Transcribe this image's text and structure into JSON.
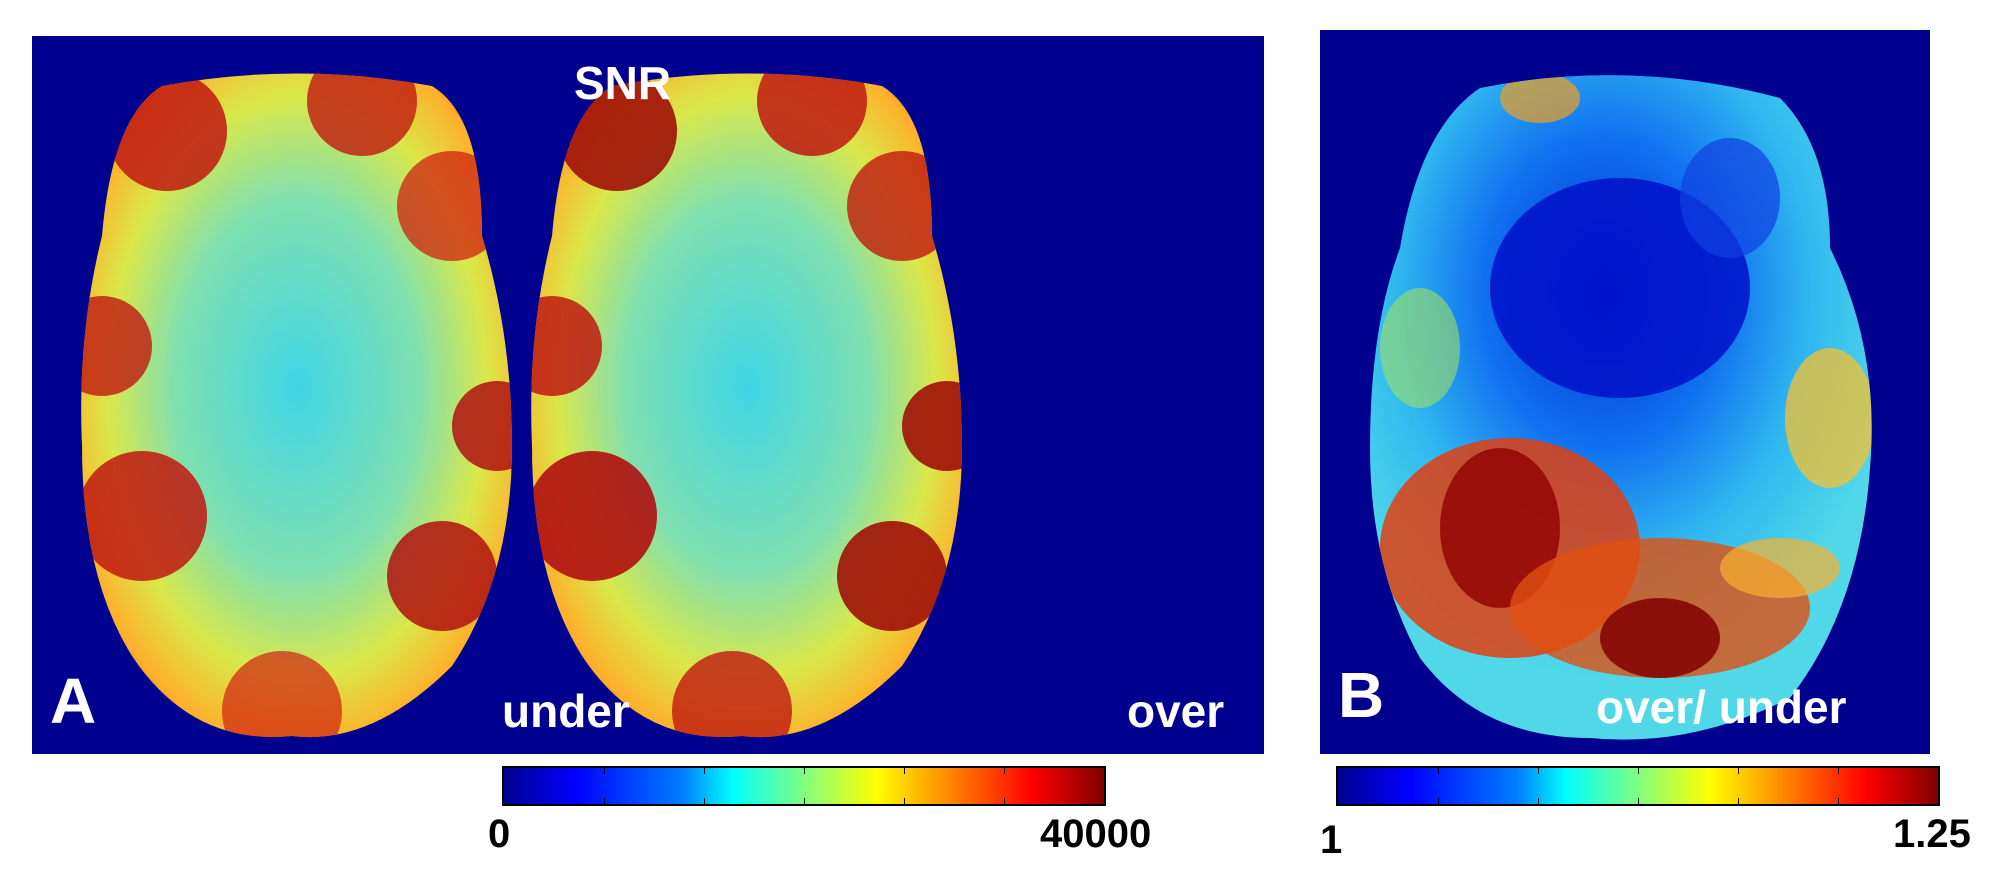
{
  "panel_a": {
    "letter": "A",
    "title": "SNR",
    "left_label": "under",
    "right_label": "over",
    "colorbar": {
      "min_label": "0",
      "max_label": "40000",
      "colormap": "jet"
    }
  },
  "panel_b": {
    "letter": "B",
    "label": "over/ under",
    "colorbar": {
      "min_label": "1",
      "max_label": "1.25",
      "colormap": "jet"
    }
  },
  "colors": {
    "background": "#00008f",
    "jet_low": "#00008f",
    "jet_mid": "#ffff00",
    "jet_high": "#800000"
  }
}
